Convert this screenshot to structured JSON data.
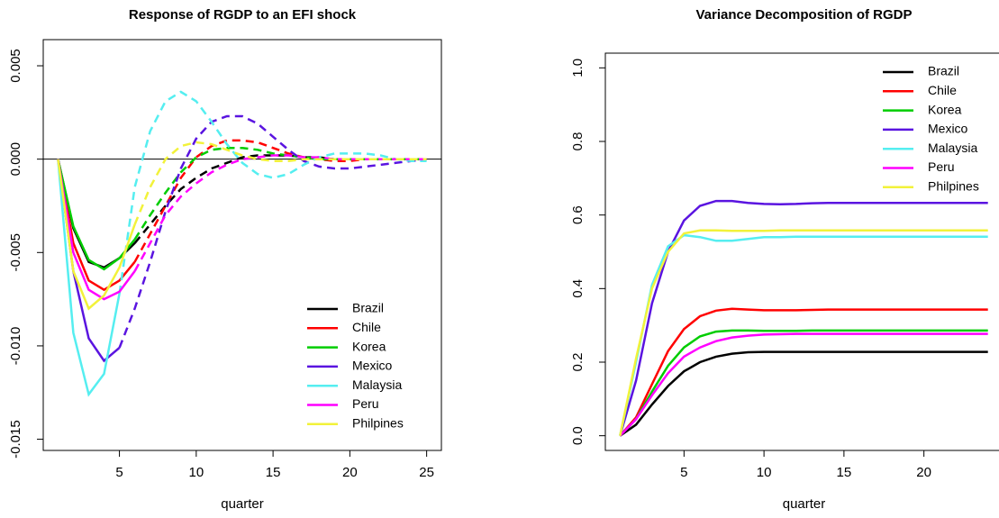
{
  "chart_data": [
    {
      "type": "line",
      "title": "Response of RGDP to an EFI shock",
      "x_label": "quarter",
      "x": [
        1,
        2,
        3,
        4,
        5,
        6,
        7,
        8,
        9,
        10,
        11,
        12,
        13,
        14,
        15,
        16,
        17,
        18,
        19,
        20,
        21,
        22,
        23,
        24,
        25
      ],
      "xlim": [
        0.04,
        25.96
      ],
      "xticks": [
        5,
        10,
        15,
        20,
        25
      ],
      "ylim": [
        -0.0156,
        0.0064
      ],
      "yticks": [
        {
          "value": 0.005,
          "label": "0.005"
        },
        {
          "value": 0,
          "label": "0.000"
        },
        {
          "value": -0.005,
          "label": "-0.005"
        },
        {
          "value": -0.01,
          "label": "-0.010"
        },
        {
          "value": -0.015,
          "label": "-0.015"
        }
      ],
      "zero_line": true,
      "legend": "bottom-right",
      "series": [
        {
          "name": "Brazil",
          "color": "#000000",
          "solid_until": 6,
          "values": [
            0,
            -0.0037,
            -0.0055,
            -0.0058,
            -0.0053,
            -0.0045,
            -0.0035,
            -0.0025,
            -0.0016,
            -0.001,
            -0.0005,
            -0.0002,
            0.0001,
            0.0002,
            0.0002,
            0.0002,
            0.0001,
            0.0001,
            0,
            0,
            0,
            0,
            0,
            0,
            0
          ]
        },
        {
          "name": "Chile",
          "color": "#ff0000",
          "solid_until": 6,
          "values": [
            0,
            -0.0045,
            -0.0065,
            -0.007,
            -0.0065,
            -0.0055,
            -0.004,
            -0.0025,
            -0.001,
            0.0001,
            0.0007,
            0.001,
            0.001,
            0.0009,
            0.0006,
            0.0003,
            0.0001,
            0,
            -0.0001,
            -0.0001,
            0,
            0,
            0,
            0,
            0
          ]
        },
        {
          "name": "Korea",
          "color": "#00cd00",
          "solid_until": 6,
          "values": [
            0,
            -0.0036,
            -0.0054,
            -0.0059,
            -0.0053,
            -0.0043,
            -0.003,
            -0.0018,
            -0.0007,
            0.0001,
            0.0005,
            0.0006,
            0.0006,
            0.0005,
            0.0003,
            0.0002,
            0.0001,
            0,
            0,
            0,
            0,
            0,
            0,
            0,
            0
          ]
        },
        {
          "name": "Mexico",
          "color": "#5a14e0",
          "solid_until": 5,
          "values": [
            0,
            -0.006,
            -0.0096,
            -0.0108,
            -0.0101,
            -0.008,
            -0.0055,
            -0.0028,
            -0.0005,
            0.0011,
            0.002,
            0.0023,
            0.0023,
            0.0019,
            0.0012,
            0.0005,
            -0.0001,
            -0.0004,
            -0.0005,
            -0.0005,
            -0.0004,
            -0.0003,
            -0.0002,
            -0.0001,
            0
          ]
        },
        {
          "name": "Malaysia",
          "color": "#55eef0",
          "solid_until": 5,
          "values": [
            0,
            -0.0093,
            -0.0126,
            -0.0115,
            -0.0072,
            -0.0015,
            0.0015,
            0.0031,
            0.0036,
            0.0031,
            0.002,
            0.0008,
            -0.0002,
            -0.0008,
            -0.001,
            -0.0008,
            -0.0003,
            0.0001,
            0.0003,
            0.0003,
            0.0003,
            0.0002,
            0,
            -0.0001,
            -0.0001
          ]
        },
        {
          "name": "Peru",
          "color": "#ff00ff",
          "solid_until": 6,
          "values": [
            0,
            -0.005,
            -0.007,
            -0.0075,
            -0.0071,
            -0.006,
            -0.0045,
            -0.003,
            -0.002,
            -0.0013,
            -0.0007,
            -0.0003,
            0,
            0.0001,
            0.0002,
            0.0002,
            0.0001,
            0.0001,
            0,
            0,
            0,
            0,
            0,
            0,
            0
          ]
        },
        {
          "name": "Philpines",
          "color": "#f2f23a",
          "solid_until": 6,
          "values": [
            0,
            -0.006,
            -0.008,
            -0.0073,
            -0.0058,
            -0.0035,
            -0.0015,
            0,
            0.0007,
            0.0009,
            0.0008,
            0.0005,
            0.0002,
            0,
            -0.0001,
            -0.0001,
            0,
            0,
            0,
            0,
            0,
            0,
            0,
            0,
            0
          ]
        }
      ]
    },
    {
      "type": "line",
      "title": "Variance Decomposition of RGDP",
      "x_label": "quarter",
      "x": [
        1,
        2,
        3,
        4,
        5,
        6,
        7,
        8,
        9,
        10,
        11,
        12,
        13,
        14,
        15,
        16,
        17,
        18,
        19,
        20,
        21,
        22,
        23,
        24
      ],
      "xlim": [
        0.08,
        24.92
      ],
      "xticks": [
        5,
        10,
        15,
        20
      ],
      "ylim": [
        -0.04,
        1.04
      ],
      "yticks": [
        {
          "value": 0,
          "label": "0.0"
        },
        0.2,
        0.4,
        0.6,
        0.8,
        {
          "value": 1,
          "label": "1.0"
        }
      ],
      "zero_line": false,
      "legend": "top-right",
      "series": [
        {
          "name": "Brazil",
          "color": "#000000",
          "values": [
            0,
            0.03,
            0.085,
            0.135,
            0.175,
            0.2,
            0.215,
            0.223,
            0.227,
            0.228,
            0.228,
            0.228,
            0.228,
            0.228,
            0.228,
            0.228,
            0.228,
            0.228,
            0.228,
            0.228,
            0.228,
            0.228,
            0.228,
            0.228
          ]
        },
        {
          "name": "Chile",
          "color": "#ff0000",
          "values": [
            0,
            0.05,
            0.14,
            0.23,
            0.29,
            0.325,
            0.34,
            0.345,
            0.343,
            0.341,
            0.341,
            0.341,
            0.342,
            0.343,
            0.343,
            0.343,
            0.343,
            0.343,
            0.343,
            0.343,
            0.343,
            0.343,
            0.343,
            0.343
          ]
        },
        {
          "name": "Korea",
          "color": "#00cd00",
          "values": [
            0,
            0.045,
            0.12,
            0.19,
            0.24,
            0.27,
            0.283,
            0.286,
            0.286,
            0.285,
            0.285,
            0.285,
            0.286,
            0.286,
            0.286,
            0.286,
            0.286,
            0.286,
            0.286,
            0.286,
            0.286,
            0.286,
            0.286,
            0.286
          ]
        },
        {
          "name": "Mexico",
          "color": "#5a14e0",
          "values": [
            0,
            0.15,
            0.36,
            0.5,
            0.585,
            0.625,
            0.638,
            0.638,
            0.633,
            0.63,
            0.629,
            0.63,
            0.632,
            0.633,
            0.633,
            0.633,
            0.633,
            0.633,
            0.633,
            0.633,
            0.633,
            0.633,
            0.633,
            0.633
          ]
        },
        {
          "name": "Malaysia",
          "color": "#55eef0",
          "values": [
            0,
            0.2,
            0.41,
            0.515,
            0.545,
            0.54,
            0.53,
            0.53,
            0.535,
            0.54,
            0.54,
            0.541,
            0.541,
            0.541,
            0.541,
            0.541,
            0.541,
            0.541,
            0.541,
            0.541,
            0.541,
            0.541,
            0.541,
            0.541
          ]
        },
        {
          "name": "Peru",
          "color": "#ff00ff",
          "values": [
            0,
            0.045,
            0.11,
            0.17,
            0.215,
            0.24,
            0.257,
            0.267,
            0.272,
            0.275,
            0.276,
            0.277,
            0.277,
            0.277,
            0.277,
            0.277,
            0.277,
            0.277,
            0.277,
            0.277,
            0.277,
            0.277,
            0.277,
            0.277
          ]
        },
        {
          "name": "Philpines",
          "color": "#f2f23a",
          "values": [
            0,
            0.21,
            0.4,
            0.5,
            0.55,
            0.558,
            0.558,
            0.557,
            0.557,
            0.557,
            0.558,
            0.558,
            0.558,
            0.558,
            0.558,
            0.558,
            0.558,
            0.558,
            0.558,
            0.558,
            0.558,
            0.558,
            0.558,
            0.558
          ]
        }
      ]
    }
  ]
}
